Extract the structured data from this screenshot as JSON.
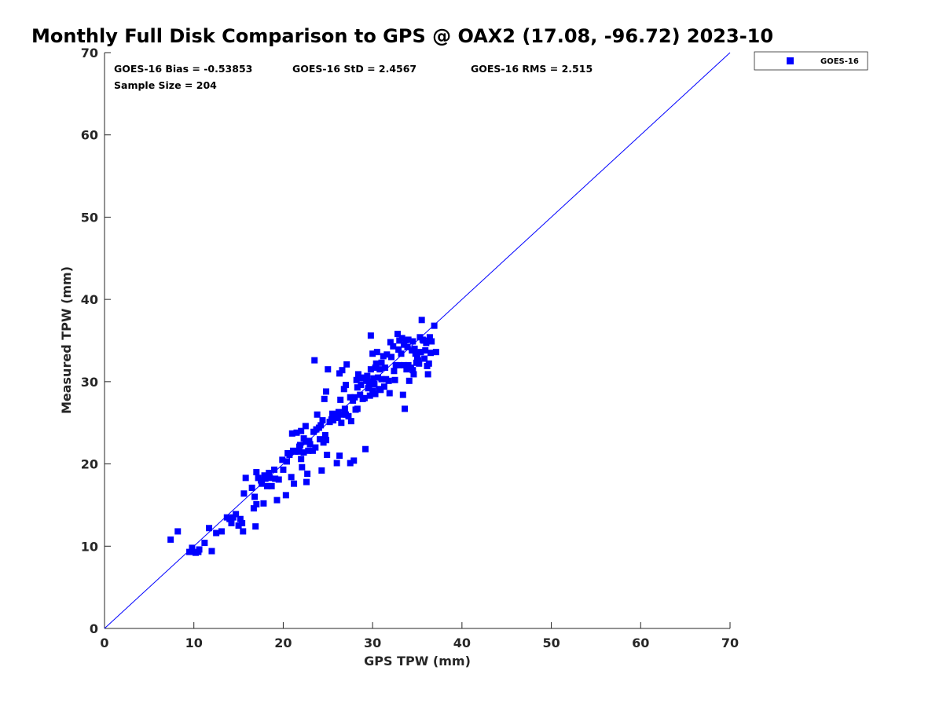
{
  "chart_data": {
    "type": "scatter",
    "title": "Monthly Full Disk Comparison to GPS @ OAX2 (17.08, -96.72) 2023-10",
    "xlabel": "GPS TPW (mm)",
    "ylabel": "Measured TPW (mm)",
    "xlim": [
      0,
      70
    ],
    "ylim": [
      0,
      70
    ],
    "xticks": [
      0,
      10,
      20,
      30,
      40,
      50,
      60,
      70
    ],
    "yticks": [
      0,
      10,
      20,
      30,
      40,
      50,
      60,
      70
    ],
    "grid": false,
    "legend_position": "outside-top-right",
    "reference_line": {
      "name": "1:1 line",
      "x": [
        0,
        70
      ],
      "y": [
        0,
        70
      ],
      "color": "#0000ff"
    },
    "stats": {
      "bias": "GOES-16 Bias = -0.53853",
      "std": "GOES-16 StD = 2.4567",
      "rms": "GOES-16 RMS = 2.515",
      "sample_size": "Sample Size = 204"
    },
    "series": [
      {
        "name": "GOES-16",
        "color": "#0000ff",
        "marker": "square",
        "points": [
          [
            7.4,
            10.8
          ],
          [
            8.2,
            11.8
          ],
          [
            9.5,
            9.3
          ],
          [
            9.8,
            9.8
          ],
          [
            10.2,
            9.2
          ],
          [
            10.5,
            9.3
          ],
          [
            10.6,
            9.6
          ],
          [
            11.7,
            12.2
          ],
          [
            12.0,
            9.4
          ],
          [
            13.1,
            11.8
          ],
          [
            14.0,
            13.3
          ],
          [
            14.2,
            12.8
          ],
          [
            14.4,
            13.5
          ],
          [
            15.0,
            12.5
          ],
          [
            15.2,
            13.3
          ],
          [
            15.4,
            12.8
          ],
          [
            15.5,
            11.8
          ],
          [
            15.6,
            16.4
          ],
          [
            15.8,
            18.3
          ],
          [
            16.7,
            14.6
          ],
          [
            16.8,
            16.0
          ],
          [
            16.9,
            12.4
          ],
          [
            17.0,
            15.1
          ],
          [
            17.0,
            19.0
          ],
          [
            17.2,
            18.3
          ],
          [
            17.5,
            18.0
          ],
          [
            17.6,
            17.6
          ],
          [
            17.8,
            15.2
          ],
          [
            17.9,
            18.6
          ],
          [
            18.0,
            18.2
          ],
          [
            18.2,
            17.3
          ],
          [
            18.5,
            18.3
          ],
          [
            18.7,
            17.3
          ],
          [
            19.1,
            18.2
          ],
          [
            19.3,
            15.6
          ],
          [
            19.5,
            18.1
          ],
          [
            20.0,
            19.3
          ],
          [
            20.3,
            16.2
          ],
          [
            20.4,
            20.3
          ],
          [
            20.5,
            21.3
          ],
          [
            20.7,
            21.1
          ],
          [
            20.9,
            18.4
          ],
          [
            21.0,
            23.7
          ],
          [
            21.2,
            17.6
          ],
          [
            21.3,
            21.5
          ],
          [
            21.5,
            23.8
          ],
          [
            21.7,
            21.5
          ],
          [
            21.9,
            22.3
          ],
          [
            22.0,
            20.6
          ],
          [
            22.0,
            24.0
          ],
          [
            22.1,
            19.6
          ],
          [
            22.3,
            23.1
          ],
          [
            22.3,
            21.4
          ],
          [
            22.5,
            22.7
          ],
          [
            22.5,
            24.6
          ],
          [
            22.6,
            17.8
          ],
          [
            22.7,
            18.8
          ],
          [
            22.8,
            21.6
          ],
          [
            23.0,
            22.4
          ],
          [
            23.3,
            21.6
          ],
          [
            23.5,
            32.6
          ],
          [
            23.6,
            22.0
          ],
          [
            23.7,
            24.2
          ],
          [
            23.8,
            26.0
          ],
          [
            24.0,
            24.4
          ],
          [
            24.1,
            23.0
          ],
          [
            24.3,
            19.2
          ],
          [
            24.4,
            25.3
          ],
          [
            24.5,
            22.6
          ],
          [
            24.6,
            27.9
          ],
          [
            24.7,
            23.5
          ],
          [
            24.8,
            22.9
          ],
          [
            24.8,
            28.8
          ],
          [
            24.9,
            21.1
          ],
          [
            25.0,
            31.5
          ],
          [
            25.2,
            25.1
          ],
          [
            25.4,
            25.4
          ],
          [
            25.6,
            25.3
          ],
          [
            25.8,
            25.9
          ],
          [
            26.0,
            20.1
          ],
          [
            26.1,
            25.6
          ],
          [
            26.3,
            21.0
          ],
          [
            26.3,
            31.0
          ],
          [
            26.4,
            27.8
          ],
          [
            26.5,
            25.0
          ],
          [
            26.6,
            31.4
          ],
          [
            26.7,
            26.0
          ],
          [
            26.8,
            29.1
          ],
          [
            26.9,
            26.7
          ],
          [
            27.0,
            29.6
          ],
          [
            27.0,
            26.0
          ],
          [
            27.1,
            32.1
          ],
          [
            27.3,
            25.8
          ],
          [
            27.5,
            28.1
          ],
          [
            27.5,
            20.1
          ],
          [
            27.6,
            25.2
          ],
          [
            27.9,
            20.4
          ],
          [
            28.0,
            28.1
          ],
          [
            28.1,
            26.6
          ],
          [
            28.2,
            30.2
          ],
          [
            28.3,
            26.7
          ],
          [
            28.3,
            29.3
          ],
          [
            28.4,
            30.9
          ],
          [
            28.6,
            28.4
          ],
          [
            28.7,
            29.6
          ],
          [
            28.8,
            30.4
          ],
          [
            29.0,
            30.5
          ],
          [
            29.1,
            28.0
          ],
          [
            29.2,
            21.8
          ],
          [
            29.3,
            30.1
          ],
          [
            29.4,
            30.7
          ],
          [
            29.5,
            29.2
          ],
          [
            29.7,
            28.3
          ],
          [
            29.8,
            35.6
          ],
          [
            29.8,
            31.5
          ],
          [
            29.9,
            30.0
          ],
          [
            30.0,
            33.4
          ],
          [
            30.0,
            28.9
          ],
          [
            30.1,
            30.4
          ],
          [
            30.2,
            29.7
          ],
          [
            30.3,
            28.5
          ],
          [
            30.3,
            31.7
          ],
          [
            30.4,
            32.2
          ],
          [
            30.5,
            33.6
          ],
          [
            30.6,
            30.5
          ],
          [
            30.8,
            31.5
          ],
          [
            30.9,
            29.0
          ],
          [
            31.0,
            32.3
          ],
          [
            31.0,
            30.3
          ],
          [
            31.2,
            33.1
          ],
          [
            31.4,
            31.7
          ],
          [
            31.5,
            30.3
          ],
          [
            31.6,
            33.3
          ],
          [
            31.8,
            30.1
          ],
          [
            31.9,
            28.6
          ],
          [
            32.0,
            34.8
          ],
          [
            32.1,
            33.0
          ],
          [
            32.3,
            34.3
          ],
          [
            32.5,
            30.2
          ],
          [
            32.6,
            32.0
          ],
          [
            32.8,
            35.8
          ],
          [
            33.0,
            35.0
          ],
          [
            33.0,
            32.0
          ],
          [
            33.3,
            35.3
          ],
          [
            33.4,
            28.4
          ],
          [
            33.5,
            34.5
          ],
          [
            33.5,
            32.0
          ],
          [
            33.6,
            26.7
          ],
          [
            33.7,
            35.0
          ],
          [
            33.8,
            31.5
          ],
          [
            34.0,
            35.1
          ],
          [
            34.0,
            32.0
          ],
          [
            34.1,
            30.1
          ],
          [
            34.3,
            31.7
          ],
          [
            34.5,
            34.9
          ],
          [
            34.5,
            31.4
          ],
          [
            34.6,
            30.9
          ],
          [
            34.8,
            33.4
          ],
          [
            34.9,
            32.3
          ],
          [
            35.0,
            33.0
          ],
          [
            35.1,
            32.6
          ],
          [
            35.2,
            32.2
          ],
          [
            35.4,
            33.6
          ],
          [
            35.5,
            37.5
          ],
          [
            35.6,
            35.1
          ],
          [
            35.7,
            35.0
          ],
          [
            35.8,
            32.8
          ],
          [
            35.9,
            33.8
          ],
          [
            36.0,
            34.7
          ],
          [
            36.1,
            31.9
          ],
          [
            36.2,
            30.9
          ],
          [
            36.3,
            32.2
          ],
          [
            36.4,
            35.4
          ],
          [
            36.5,
            33.5
          ],
          [
            36.6,
            34.9
          ],
          [
            36.9,
            36.8
          ],
          [
            37.1,
            33.6
          ],
          [
            34.4,
            33.8
          ],
          [
            33.2,
            33.4
          ],
          [
            32.4,
            31.3
          ],
          [
            31.3,
            29.4
          ],
          [
            30.7,
            29.1
          ],
          [
            29.6,
            29.6
          ],
          [
            28.9,
            27.9
          ],
          [
            27.8,
            27.7
          ],
          [
            26.2,
            26.3
          ],
          [
            25.5,
            26.1
          ],
          [
            24.2,
            24.7
          ],
          [
            23.4,
            23.9
          ],
          [
            22.9,
            22.8
          ],
          [
            21.8,
            22.1
          ],
          [
            21.1,
            21.6
          ],
          [
            19.9,
            20.5
          ],
          [
            19.0,
            19.3
          ],
          [
            18.4,
            18.9
          ],
          [
            16.5,
            17.1
          ],
          [
            14.7,
            13.9
          ],
          [
            13.7,
            13.5
          ],
          [
            12.5,
            11.6
          ],
          [
            11.2,
            10.4
          ],
          [
            35.3,
            35.4
          ],
          [
            34.7,
            34.0
          ],
          [
            33.9,
            34.2
          ],
          [
            32.9,
            33.9
          ]
        ]
      }
    ]
  }
}
